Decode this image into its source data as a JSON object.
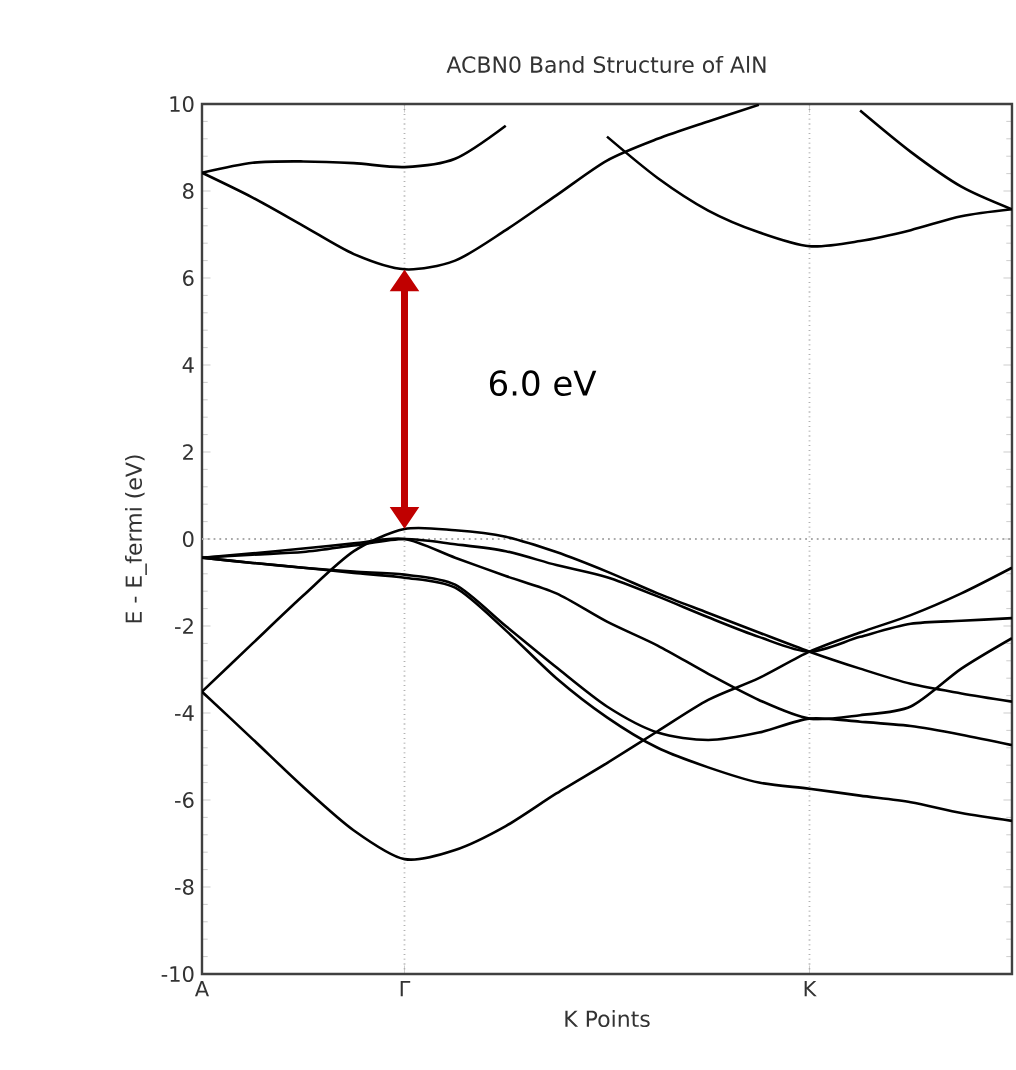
{
  "chart_data": {
    "type": "line",
    "title": "ACBN0 Band Structure of AlN",
    "xlabel": "K Points",
    "ylabel": "E - E_fermi (eV)",
    "categories": [
      "A",
      null,
      null,
      null,
      "Γ",
      null,
      null,
      null,
      null,
      null,
      null,
      null,
      "K",
      null,
      null,
      null,
      null
    ],
    "ylim": [
      -10,
      10
    ],
    "yticks": [
      -10,
      -8,
      -6,
      -4,
      -2,
      0,
      2,
      4,
      6,
      8,
      10
    ],
    "grid": "x",
    "ref_lines": [
      {
        "axis": "y",
        "value": 0,
        "color": "#aaaaaa",
        "line_style": "dotted"
      }
    ],
    "annotations": [
      "6.0 eV"
    ],
    "series": [
      {
        "color": "#000000",
        "values": [
          8.42,
          8.65,
          8.68,
          8.64,
          8.55,
          8.74,
          9.5,
          null,
          null,
          null,
          null,
          null,
          null,
          null,
          null,
          null,
          null
        ]
      },
      {
        "color": "#000000",
        "values": [
          8.42,
          7.85,
          7.2,
          6.55,
          6.2,
          6.4,
          7.1,
          7.9,
          8.7,
          9.2,
          9.6,
          9.98,
          null,
          null,
          null,
          null,
          null
        ]
      },
      {
        "color": "#000000",
        "values": [
          null,
          null,
          null,
          null,
          null,
          null,
          null,
          null,
          9.25,
          8.3,
          7.55,
          7.05,
          6.73,
          6.85,
          7.1,
          7.42,
          7.58
        ]
      },
      {
        "color": "#000000",
        "values": [
          null,
          null,
          null,
          null,
          null,
          null,
          null,
          null,
          null,
          null,
          null,
          null,
          null,
          9.85,
          8.9,
          8.1,
          7.58
        ]
      },
      {
        "color": "#000000",
        "values": [
          -3.51,
          -2.4,
          -1.3,
          -0.28,
          0.23,
          0.2,
          0.05,
          -0.3,
          -0.75,
          -1.25,
          -1.7,
          -2.15,
          -2.59,
          -2.98,
          -3.33,
          -3.55,
          -3.74
        ]
      },
      {
        "color": "#000000",
        "values": [
          -0.43,
          -0.36,
          -0.3,
          -0.15,
          0,
          -0.12,
          -0.28,
          -0.6,
          -0.88,
          -1.32,
          -1.8,
          -2.25,
          -2.59,
          -2.25,
          -1.95,
          -1.88,
          -1.82
        ]
      },
      {
        "color": "#000000",
        "values": [
          -0.43,
          -0.33,
          -0.22,
          -0.1,
          0,
          -0.43,
          -0.85,
          -1.25,
          -1.9,
          -2.45,
          -3.1,
          -3.7,
          -4.13,
          -4.05,
          -3.85,
          -2.98,
          -2.28
        ]
      },
      {
        "color": "#000000",
        "values": [
          -0.43,
          -0.55,
          -0.66,
          -0.75,
          -0.82,
          -1.05,
          -2.0,
          -2.95,
          -3.85,
          -4.45,
          -4.62,
          -4.45,
          -4.13,
          -4.2,
          -4.3,
          -4.5,
          -4.74
        ]
      },
      {
        "color": "#000000",
        "values": [
          -0.43,
          -0.55,
          -0.66,
          -0.78,
          -0.89,
          -1.12,
          -2.1,
          -3.2,
          -4.1,
          -4.8,
          -5.25,
          -5.6,
          -5.74,
          -5.9,
          -6.05,
          -6.3,
          -6.48
        ]
      },
      {
        "color": "#000000",
        "values": [
          -3.51,
          -4.6,
          -5.7,
          -6.7,
          -7.36,
          -7.15,
          -6.6,
          -5.85,
          -5.15,
          -4.42,
          -3.7,
          -3.2,
          -2.59,
          -2.15,
          -1.75,
          -1.25,
          -0.66
        ]
      }
    ]
  }
}
